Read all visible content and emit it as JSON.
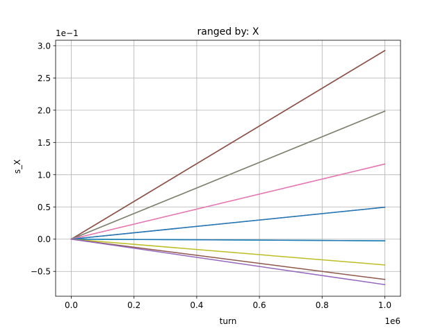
{
  "chart_data": {
    "type": "line",
    "title": "ranged by: X",
    "xlabel": "turn",
    "ylabel": "s_X",
    "x_offset_text": "1e6",
    "y_offset_text": "1e−1",
    "x_scale": 1000000,
    "y_scale": 0.1,
    "xlim": [
      -50000,
      1050000
    ],
    "ylim": [
      -0.0885,
      0.3085
    ],
    "x_ticks": [
      0,
      200000,
      400000,
      600000,
      800000,
      1000000
    ],
    "x_tick_labels": [
      "0.0",
      "0.2",
      "0.4",
      "0.6",
      "0.8",
      "1.0"
    ],
    "y_ticks": [
      -0.05,
      0,
      0.05,
      0.1,
      0.15,
      0.2,
      0.25,
      0.3
    ],
    "y_tick_labels": [
      "−0.5",
      "0.0",
      "0.5",
      "1.0",
      "1.5",
      "2.0",
      "2.5",
      "3.0"
    ],
    "grid": true,
    "legend": "none",
    "x": [
      0,
      1000000
    ],
    "series": [
      {
        "values": [
          0,
          0.2925
        ],
        "color": "#1f77b4"
      },
      {
        "values": [
          0,
          0.2925
        ],
        "color": "#d62728"
      },
      {
        "values": [
          0,
          0.2925
        ],
        "color": "#8c564b"
      },
      {
        "values": [
          0,
          0.1985
        ],
        "color": "#2ca02c"
      },
      {
        "values": [
          0,
          0.1985
        ],
        "color": "#bcbd22"
      },
      {
        "values": [
          0,
          0.1985
        ],
        "color": "#7f7f7f"
      },
      {
        "values": [
          0,
          0.1165
        ],
        "color": "#ff7f0e"
      },
      {
        "values": [
          0,
          0.1165
        ],
        "color": "#e377c2"
      },
      {
        "values": [
          0,
          0.0495
        ],
        "color": "#9467bd"
      },
      {
        "values": [
          0,
          0.0495
        ],
        "color": "#1f77b4"
      },
      {
        "values": [
          0,
          -0.0025
        ],
        "color": "#17becf"
      },
      {
        "values": [
          0,
          -0.0025
        ],
        "color": "#1f77b4"
      },
      {
        "values": [
          0,
          -0.04
        ],
        "color": "#bcbd22"
      },
      {
        "values": [
          0,
          -0.0625
        ],
        "color": "#8c564b"
      },
      {
        "values": [
          0,
          -0.0705
        ],
        "color": "#9467bd"
      }
    ]
  }
}
